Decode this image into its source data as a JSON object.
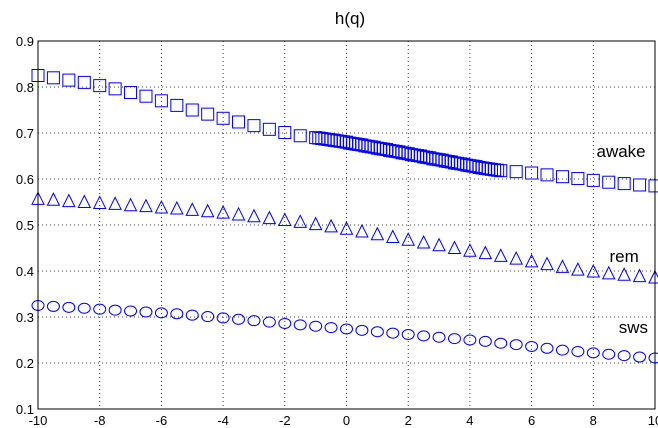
{
  "chart_data": {
    "type": "scatter",
    "title": "h(q)",
    "xlabel": "",
    "ylabel": "",
    "xlim": [
      -10,
      10
    ],
    "ylim": [
      0.1,
      0.9
    ],
    "x_ticks": [
      -10,
      -8,
      -6,
      -4,
      -2,
      0,
      2,
      4,
      6,
      8,
      10
    ],
    "x_tick_labels": [
      "-10",
      "-8",
      "-6",
      "-4",
      "-2",
      "0",
      "2",
      "4",
      "6",
      "8",
      "10"
    ],
    "y_ticks": [
      0.1,
      0.2,
      0.3,
      0.4,
      0.5,
      0.6,
      0.7,
      0.8,
      0.9
    ],
    "y_tick_labels": [
      "0.1",
      "0.2",
      "0.3",
      "0.4",
      "0.5",
      "0.6",
      "0.7",
      "0.8",
      "0.9"
    ],
    "grid": true,
    "marker_color": "#0000ff",
    "series": [
      {
        "name": "awake",
        "marker": "square",
        "label_at": [
          8.9,
          0.648
        ],
        "x": [
          -10,
          -9.5,
          -9,
          -8.5,
          -8,
          -7.5,
          -7,
          -6.5,
          -6,
          -5.5,
          -5,
          -4.5,
          -4,
          -3.5,
          -3,
          -2.5,
          -2,
          -1.5,
          -1,
          -0.9,
          -0.8,
          -0.7,
          -0.6,
          -0.5,
          -0.4,
          -0.3,
          -0.2,
          -0.1,
          0,
          0.1,
          0.2,
          0.3,
          0.4,
          0.5,
          0.6,
          0.7,
          0.8,
          0.9,
          1,
          1.1,
          1.2,
          1.3,
          1.4,
          1.5,
          1.6,
          1.7,
          1.8,
          1.9,
          2,
          2.1,
          2.2,
          2.3,
          2.4,
          2.5,
          2.6,
          2.7,
          2.8,
          2.9,
          3,
          3.1,
          3.2,
          3.3,
          3.4,
          3.5,
          3.6,
          3.7,
          3.8,
          3.9,
          4,
          4.1,
          4.2,
          4.3,
          4.4,
          4.5,
          4.6,
          4.7,
          4.8,
          4.9,
          5,
          5.5,
          6,
          6.5,
          7,
          7.5,
          8,
          8.5,
          9,
          9.5,
          10
        ],
        "y": [
          0.825,
          0.82,
          0.815,
          0.81,
          0.803,
          0.796,
          0.788,
          0.78,
          0.77,
          0.76,
          0.75,
          0.741,
          0.732,
          0.724,
          0.716,
          0.708,
          0.701,
          0.694,
          0.69,
          0.689,
          0.688,
          0.687,
          0.686,
          0.685,
          0.684,
          0.683,
          0.682,
          0.681,
          0.68,
          0.678,
          0.677,
          0.676,
          0.675,
          0.674,
          0.672,
          0.671,
          0.67,
          0.669,
          0.667,
          0.666,
          0.665,
          0.664,
          0.662,
          0.661,
          0.66,
          0.659,
          0.657,
          0.656,
          0.655,
          0.653,
          0.652,
          0.651,
          0.65,
          0.648,
          0.647,
          0.646,
          0.644,
          0.643,
          0.642,
          0.641,
          0.639,
          0.638,
          0.637,
          0.635,
          0.634,
          0.633,
          0.632,
          0.63,
          0.629,
          0.628,
          0.627,
          0.625,
          0.624,
          0.623,
          0.622,
          0.621,
          0.62,
          0.619,
          0.618,
          0.616,
          0.613,
          0.609,
          0.605,
          0.601,
          0.597,
          0.593,
          0.59,
          0.587,
          0.585
        ]
      },
      {
        "name": "rem",
        "marker": "triangle",
        "label_at": [
          9.0,
          0.42
        ],
        "x": [
          -10,
          -9.5,
          -9,
          -8.5,
          -8,
          -7.5,
          -7,
          -6.5,
          -6,
          -5.5,
          -5,
          -4.5,
          -4,
          -3.5,
          -3,
          -2.5,
          -2,
          -1.5,
          -1,
          -0.5,
          0,
          0.5,
          1,
          1.5,
          2,
          2.5,
          3,
          3.5,
          4,
          4.5,
          5,
          5.5,
          6,
          6.5,
          7,
          7.5,
          8,
          8.5,
          9,
          9.5,
          10
        ],
        "y": [
          0.558,
          0.556,
          0.553,
          0.551,
          0.549,
          0.547,
          0.544,
          0.542,
          0.539,
          0.537,
          0.534,
          0.531,
          0.528,
          0.524,
          0.52,
          0.516,
          0.512,
          0.508,
          0.503,
          0.498,
          0.493,
          0.487,
          0.481,
          0.475,
          0.469,
          0.463,
          0.457,
          0.451,
          0.445,
          0.44,
          0.434,
          0.428,
          0.422,
          0.416,
          0.41,
          0.404,
          0.4,
          0.396,
          0.393,
          0.39,
          0.387
        ]
      },
      {
        "name": "sws",
        "marker": "circle",
        "label_at": [
          9.3,
          0.265
        ],
        "x": [
          -10,
          -9.5,
          -9,
          -8.5,
          -8,
          -7.5,
          -7,
          -6.5,
          -6,
          -5.5,
          -5,
          -4.5,
          -4,
          -3.5,
          -3,
          -2.5,
          -2,
          -1.5,
          -1,
          -0.5,
          0,
          0.5,
          1,
          1.5,
          2,
          2.5,
          3,
          3.5,
          4,
          4.5,
          5,
          5.5,
          6,
          6.5,
          7,
          7.5,
          8,
          8.5,
          9,
          9.5,
          10
        ],
        "y": [
          0.325,
          0.323,
          0.321,
          0.319,
          0.317,
          0.315,
          0.313,
          0.311,
          0.309,
          0.307,
          0.304,
          0.301,
          0.298,
          0.295,
          0.292,
          0.289,
          0.286,
          0.283,
          0.28,
          0.277,
          0.274,
          0.271,
          0.268,
          0.265,
          0.262,
          0.259,
          0.256,
          0.253,
          0.25,
          0.247,
          0.243,
          0.24,
          0.236,
          0.232,
          0.228,
          0.225,
          0.222,
          0.219,
          0.216,
          0.213,
          0.211
        ]
      }
    ]
  }
}
